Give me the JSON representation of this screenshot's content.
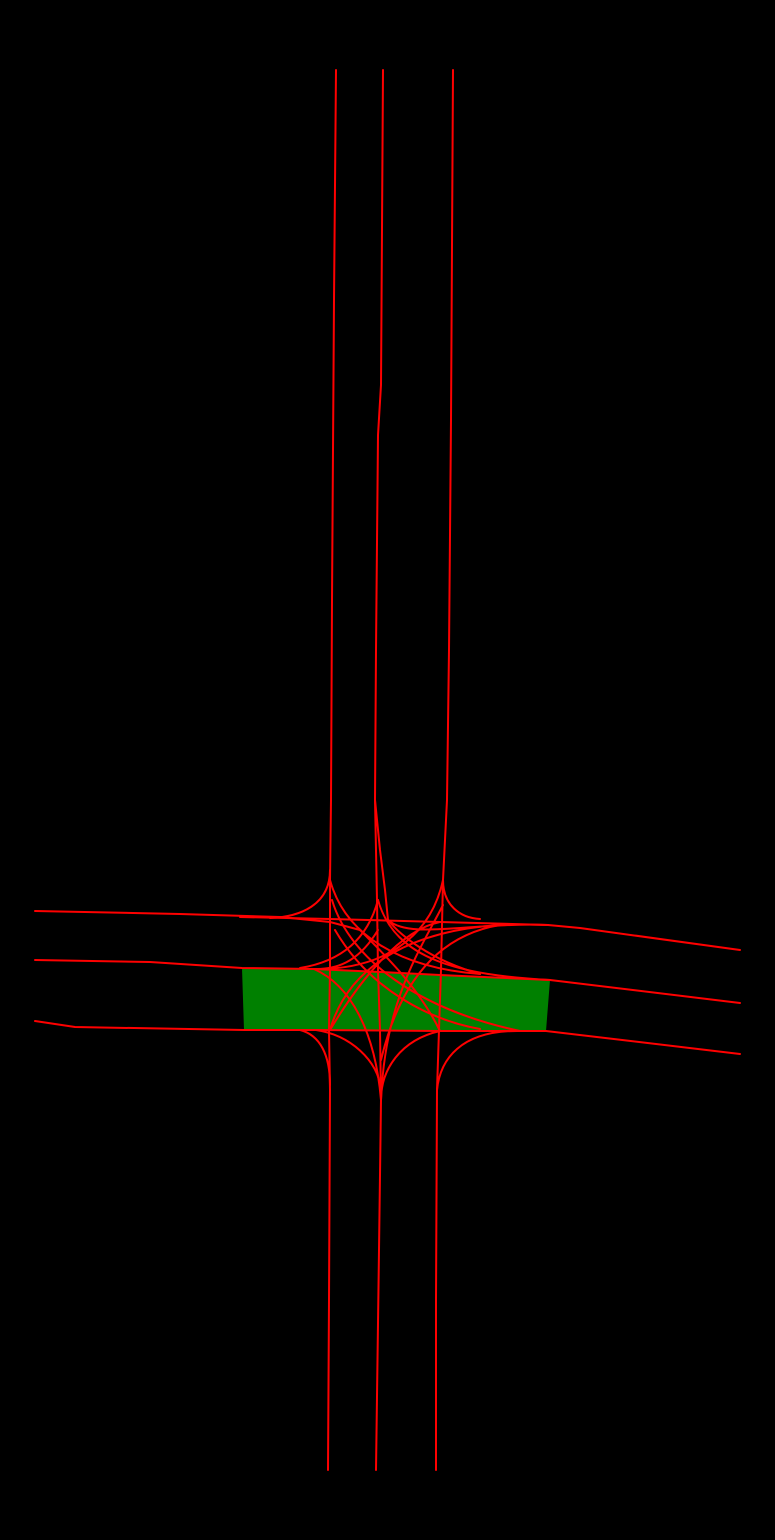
{
  "colors": {
    "background": "#000000",
    "lane_line": "#ff0000",
    "highlight_area": "#008000"
  },
  "map": {
    "feature_types": [
      "lane-centerline",
      "connector-lane",
      "highlighted-crosswalk-region"
    ]
  }
}
